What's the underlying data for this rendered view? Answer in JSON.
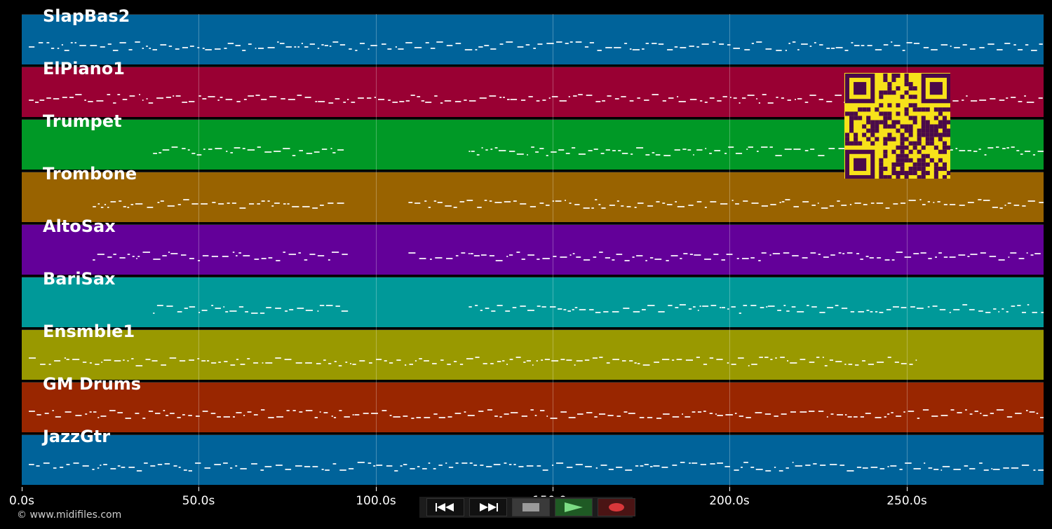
{
  "tracks": [
    {
      "name": "SlapBas2",
      "color": "#00639a"
    },
    {
      "name": "ElPiano1",
      "color": "#990033"
    },
    {
      "name": "Trumpet",
      "color": "#009926"
    },
    {
      "name": "Trombone",
      "color": "#996300"
    },
    {
      "name": "AltoSax",
      "color": "#630099"
    },
    {
      "name": "BariSax",
      "color": "#009999"
    },
    {
      "name": "Ensmble1",
      "color": "#999900"
    },
    {
      "name": "GM Drums",
      "color": "#992600"
    },
    {
      "name": "JazzGtr",
      "color": "#00639a"
    }
  ],
  "timeline": {
    "ticks": [
      "0.0s",
      "50.0s",
      "100.0s",
      "150.0s",
      "200.0s",
      "250.0s"
    ],
    "max_seconds": 288
  },
  "footer": {
    "copyright": "© www.midifiles.com"
  },
  "controls": [
    {
      "name": "rewind-icon",
      "label": "rewind"
    },
    {
      "name": "fast-forward-icon",
      "label": "fast forward"
    },
    {
      "name": "stop-icon",
      "label": "stop"
    },
    {
      "name": "play-icon",
      "label": "play"
    },
    {
      "name": "record-icon",
      "label": "record"
    }
  ],
  "qr_code": {
    "color": "#f7e21a",
    "module_color": "#4a0a4a"
  }
}
